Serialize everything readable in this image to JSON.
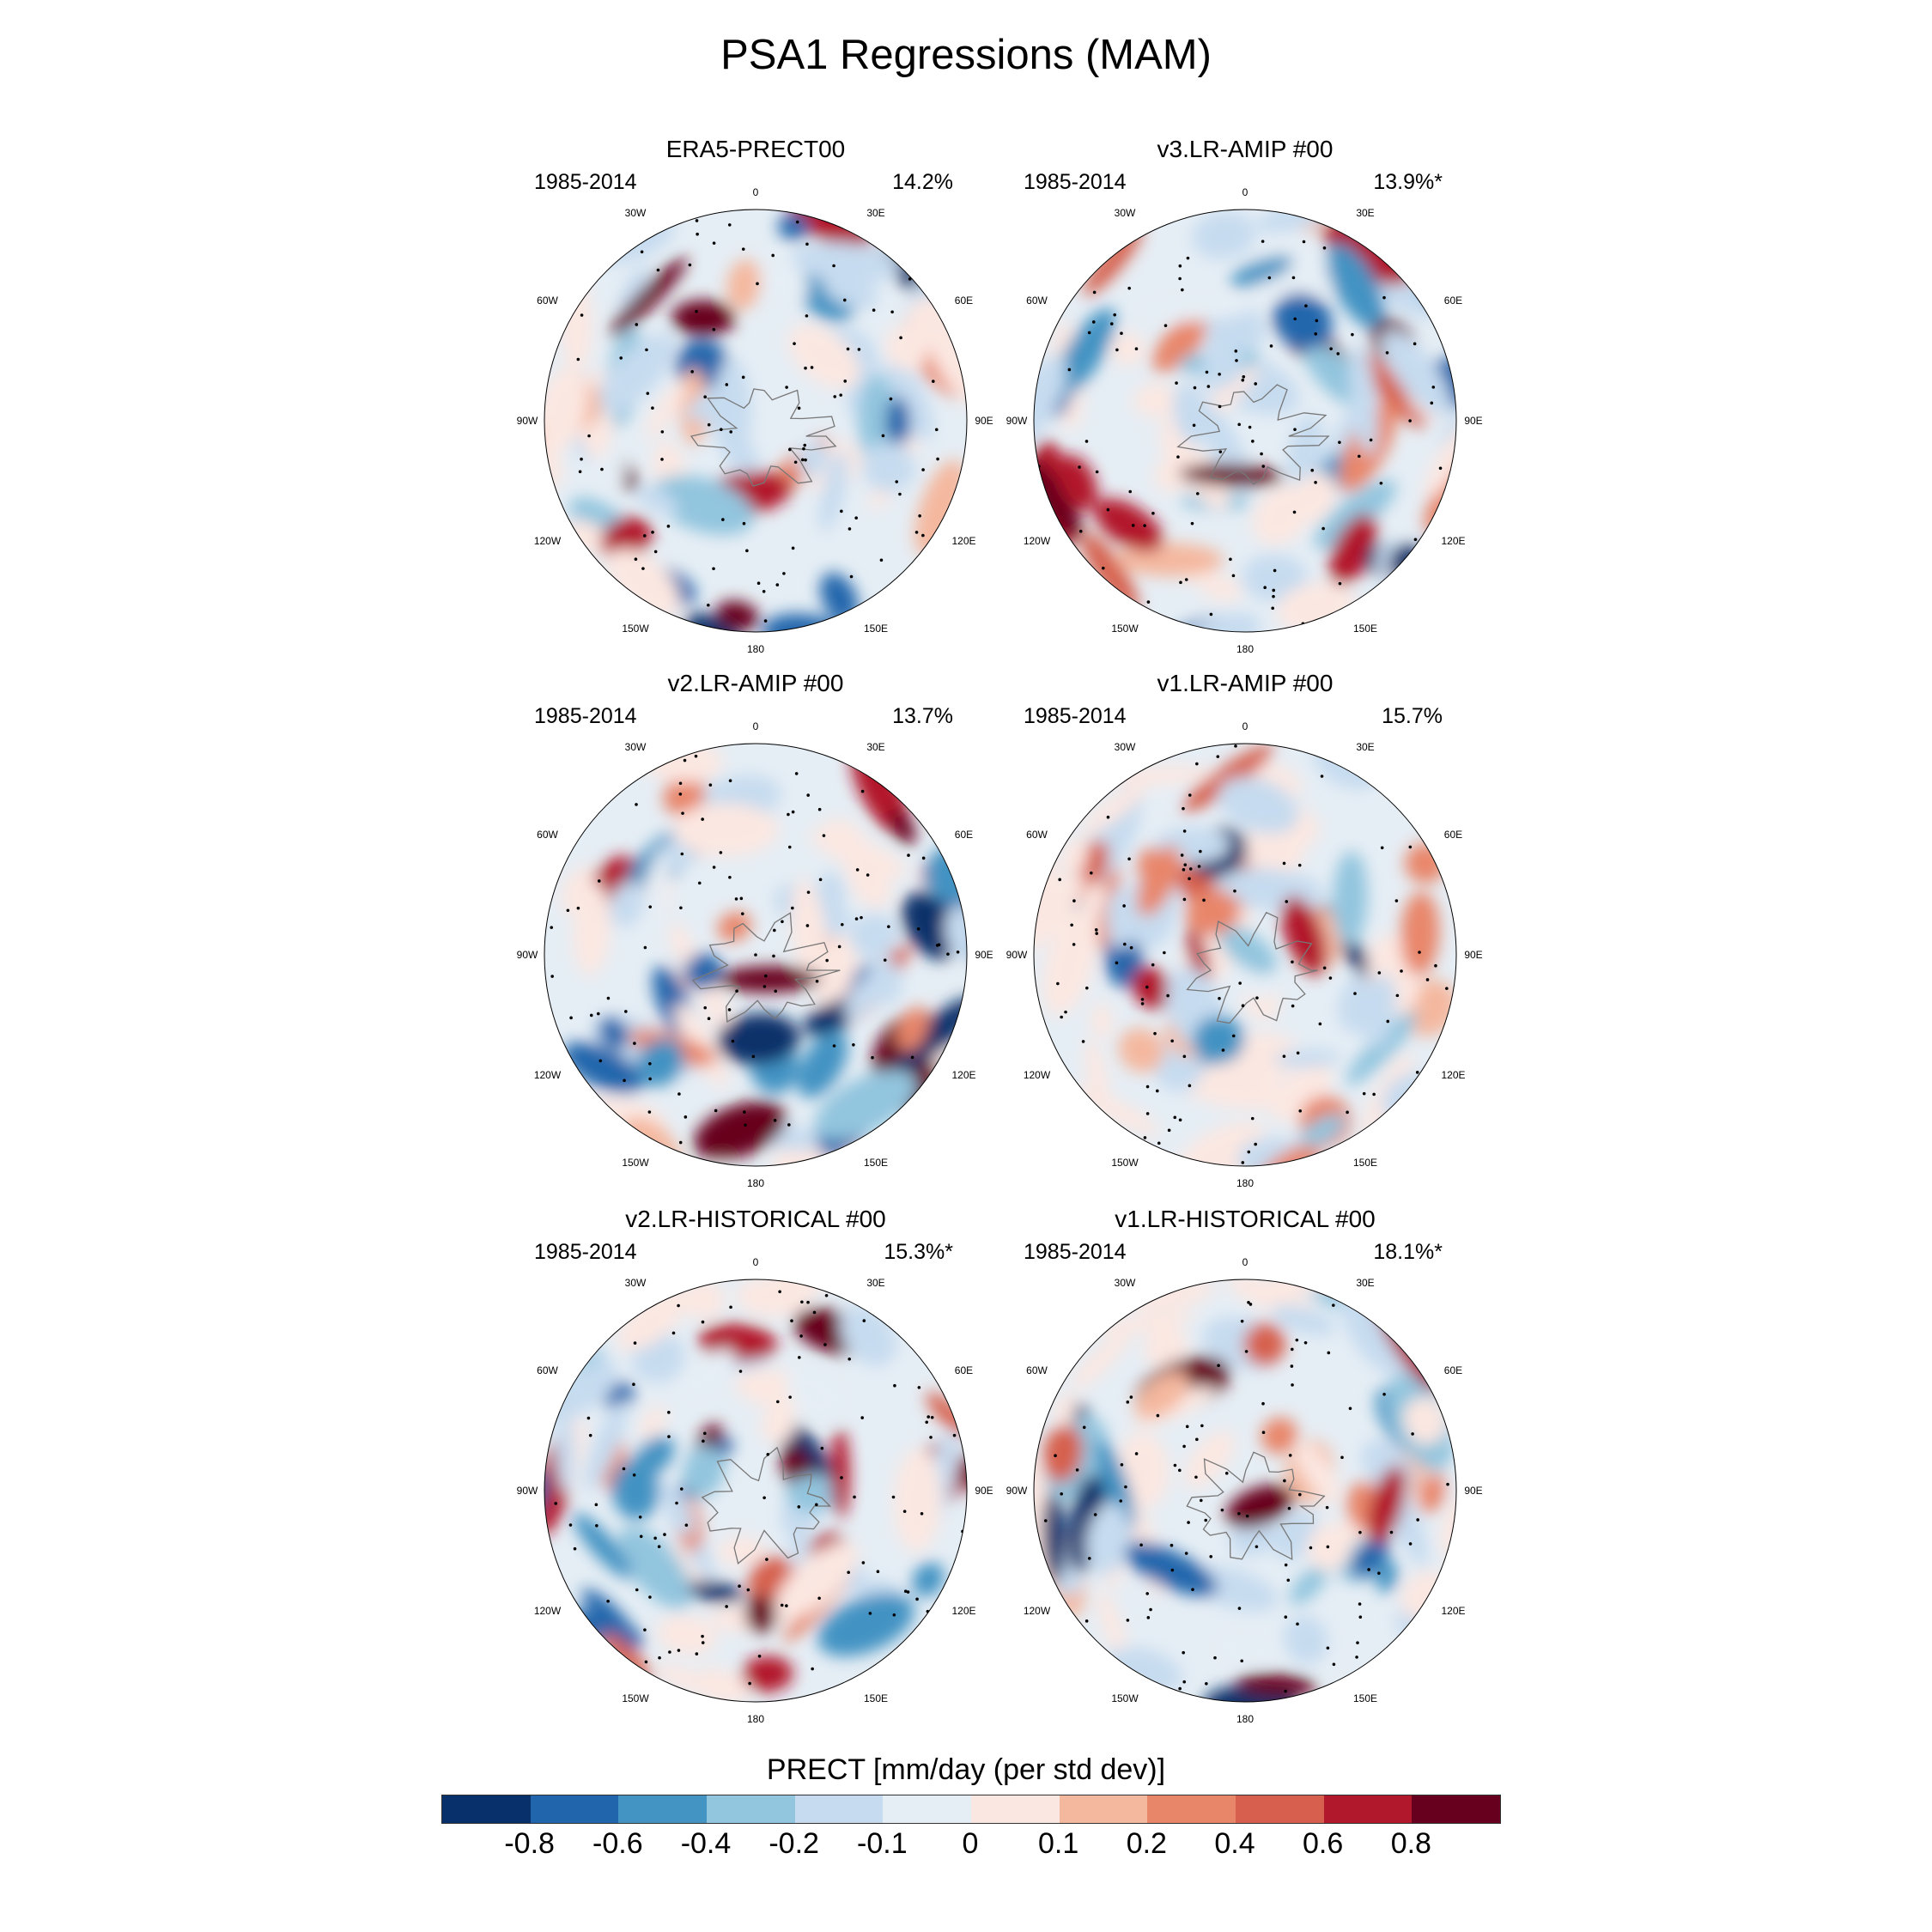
{
  "title": "PSA1 Regressions (MAM)",
  "lon_labels": [
    "0",
    "30E",
    "60E",
    "90E",
    "120E",
    "150E",
    "180",
    "150W",
    "120W",
    "90W",
    "60W",
    "30W"
  ],
  "panels": [
    {
      "title": "ERA5-PRECT00",
      "period": "1985-2014",
      "variance": "14.2%"
    },
    {
      "title": "v3.LR-AMIP  #00",
      "period": "1985-2014",
      "variance": "13.9%*"
    },
    {
      "title": "v2.LR-AMIP  #00",
      "period": "1985-2014",
      "variance": "13.7%"
    },
    {
      "title": "v1.LR-AMIP  #00",
      "period": "1985-2014",
      "variance": "15.7%"
    },
    {
      "title": "v2.LR-HISTORICAL  #00",
      "period": "1985-2014",
      "variance": "15.3%*"
    },
    {
      "title": "v1.LR-HISTORICAL  #00",
      "period": "1985-2014",
      "variance": "18.1%*"
    }
  ],
  "colorbar": {
    "title": "PRECT [mm/day (per std dev)]",
    "colors": [
      "#08306b",
      "#2166ac",
      "#4393c3",
      "#92c5de",
      "#c6dbef",
      "#e6eef5",
      "#fbe7e1",
      "#f4b89f",
      "#e8866a",
      "#d6604d",
      "#b2182b",
      "#67001f"
    ],
    "ticks": [
      "-0.8",
      "-0.6",
      "-0.4",
      "-0.2",
      "-0.1",
      "0",
      "0.1",
      "0.2",
      "0.4",
      "0.6",
      "0.8"
    ]
  },
  "chart_data": {
    "type": "heatmap",
    "title": "PSA1 Regressions (MAM)",
    "projection": "south polar stereographic",
    "variable": "PRECT",
    "units": "mm/day (per std dev)",
    "levels": [
      -0.8,
      -0.6,
      -0.4,
      -0.2,
      -0.1,
      0,
      0.1,
      0.2,
      0.4,
      0.6,
      0.8
    ],
    "panels": [
      "ERA5-PRECT00",
      "v3.LR-AMIP  #00",
      "v2.LR-AMIP  #00",
      "v1.LR-AMIP  #00",
      "v2.LR-HISTORICAL  #00",
      "v1.LR-HISTORICAL  #00"
    ],
    "variance_explained": [
      "14.2%",
      "13.9%*",
      "13.7%",
      "15.7%",
      "15.3%*",
      "18.1%*"
    ]
  }
}
